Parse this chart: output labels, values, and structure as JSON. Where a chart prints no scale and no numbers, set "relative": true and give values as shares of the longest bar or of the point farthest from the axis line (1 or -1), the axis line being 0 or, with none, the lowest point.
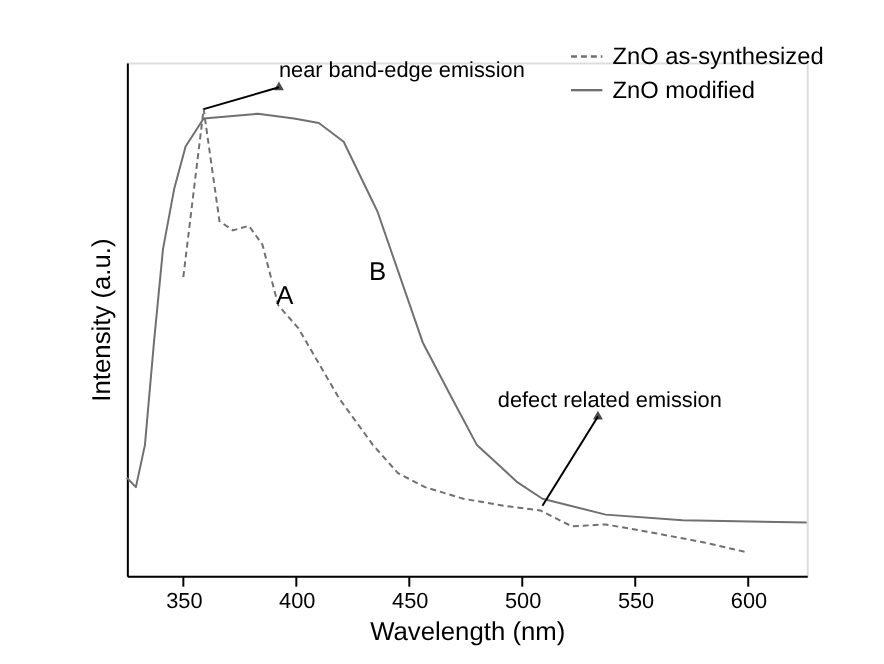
{
  "chart_data": {
    "type": "line",
    "relative": true,
    "xlabel": "Wavelength (nm)",
    "ylabel": "Intensity (a.u.)",
    "xlim": [
      325,
      626
    ],
    "xticks": [
      350,
      400,
      450,
      500,
      550,
      600
    ],
    "grid": false,
    "legend": "top right",
    "marker": "none",
    "annotations": [
      {
        "text": "near band-edge emission",
        "x": 359,
        "y": 1.0
      },
      {
        "text": "A",
        "x": 395,
        "y": 0.6
      },
      {
        "text": "B",
        "x": 443,
        "y": 0.65
      },
      {
        "text": "defect related emission",
        "x": 509,
        "y": 0.15
      }
    ],
    "series": [
      {
        "name": "ZnO as-synthesized",
        "color": "#707070",
        "line_style": "dashed",
        "x": [
          350,
          359,
          366,
          372,
          379,
          385,
          392,
          401,
          407,
          419,
          434,
          445,
          457,
          474,
          492,
          508,
          522,
          537,
          557,
          580,
          599
        ],
        "values": [
          0.64,
          1.0,
          0.76,
          0.74,
          0.75,
          0.71,
          0.58,
          0.53,
          0.48,
          0.38,
          0.28,
          0.22,
          0.19,
          0.165,
          0.15,
          0.14,
          0.106,
          0.11,
          0.093,
          0.072,
          0.051
        ]
      },
      {
        "name": "ZnO modified",
        "color": "#707070",
        "line_style": "solid",
        "x": [
          325,
          329,
          333,
          337,
          341,
          346,
          351,
          359,
          383,
          399,
          410,
          421,
          436,
          456,
          469,
          480,
          498,
          509,
          537,
          571,
          626
        ],
        "values": [
          0.21,
          0.19,
          0.28,
          0.5,
          0.7,
          0.83,
          0.92,
          0.98,
          0.99,
          0.98,
          0.97,
          0.93,
          0.78,
          0.5,
          0.38,
          0.28,
          0.2,
          0.165,
          0.131,
          0.119,
          0.114
        ]
      }
    ]
  }
}
